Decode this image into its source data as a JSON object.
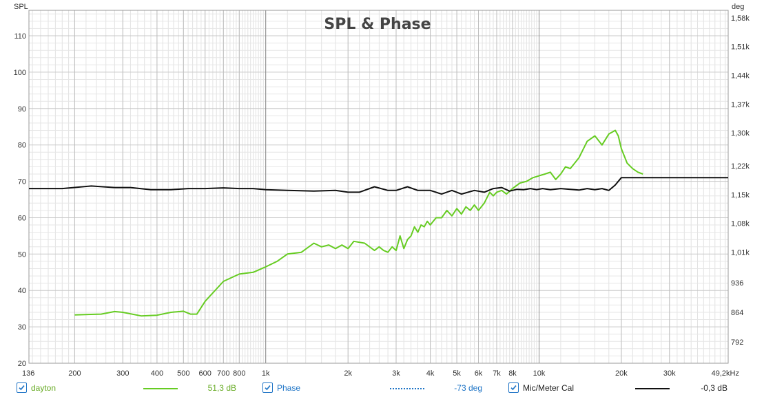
{
  "chart_data": {
    "type": "line",
    "title": "SPL & Phase",
    "ylabel": "SPL",
    "y2label": "deg",
    "x_unit_label": "49,2kHz",
    "xlim": [
      136,
      49200
    ],
    "x_scale": "log",
    "ylim": [
      20,
      117
    ],
    "y2lim": [
      740,
      1598
    ],
    "grid": true,
    "x_ticks": [
      {
        "v": 136,
        "label": "136"
      },
      {
        "v": 200,
        "label": "200"
      },
      {
        "v": 300,
        "label": "300"
      },
      {
        "v": 400,
        "label": "400"
      },
      {
        "v": 500,
        "label": "500"
      },
      {
        "v": 600,
        "label": "600"
      },
      {
        "v": 700,
        "label": "700"
      },
      {
        "v": 800,
        "label": "800"
      },
      {
        "v": 1000,
        "label": "1k"
      },
      {
        "v": 2000,
        "label": "2k"
      },
      {
        "v": 3000,
        "label": "3k"
      },
      {
        "v": 4000,
        "label": "4k"
      },
      {
        "v": 5000,
        "label": "5k"
      },
      {
        "v": 6000,
        "label": "6k"
      },
      {
        "v": 7000,
        "label": "7k"
      },
      {
        "v": 8000,
        "label": "8k"
      },
      {
        "v": 10000,
        "label": "10k"
      },
      {
        "v": 20000,
        "label": "20k"
      },
      {
        "v": 30000,
        "label": "30k"
      },
      {
        "v": 49200,
        "label": "49,2kHz"
      }
    ],
    "y_ticks": [
      20,
      30,
      40,
      50,
      60,
      70,
      80,
      90,
      100,
      110
    ],
    "y2_ticks": [
      {
        "v": 792,
        "label": "792"
      },
      {
        "v": 864,
        "label": "864"
      },
      {
        "v": 936,
        "label": "936"
      },
      {
        "v": 1010,
        "label": "1,01k"
      },
      {
        "v": 1080,
        "label": "1,08k"
      },
      {
        "v": 1150,
        "label": "1,15k"
      },
      {
        "v": 1220,
        "label": "1,22k"
      },
      {
        "v": 1300,
        "label": "1,30k"
      },
      {
        "v": 1370,
        "label": "1,37k"
      },
      {
        "v": 1440,
        "label": "1,44k"
      },
      {
        "v": 1510,
        "label": "1,51k"
      },
      {
        "v": 1580,
        "label": "1,58k"
      }
    ],
    "series": [
      {
        "name": "dayton",
        "color": "#66cc22",
        "axis": "left",
        "x": [
          200,
          250,
          280,
          300,
          350,
          400,
          450,
          500,
          530,
          560,
          600,
          700,
          800,
          900,
          1000,
          1100,
          1200,
          1350,
          1500,
          1600,
          1700,
          1800,
          1900,
          2000,
          2100,
          2300,
          2500,
          2600,
          2700,
          2800,
          2900,
          3000,
          3100,
          3200,
          3300,
          3400,
          3500,
          3600,
          3700,
          3800,
          3900,
          4000,
          4200,
          4400,
          4600,
          4800,
          5000,
          5200,
          5400,
          5600,
          5800,
          6000,
          6300,
          6600,
          6800,
          7000,
          7300,
          7600,
          8000,
          8500,
          9000,
          9500,
          10000,
          10500,
          11000,
          11500,
          12000,
          12500,
          13000,
          13500,
          14000,
          15000,
          16000,
          17000,
          18000,
          19000,
          19500,
          20000,
          21000,
          22000,
          23000,
          24000
        ],
        "y": [
          33.3,
          33.5,
          34.2,
          34,
          33,
          33.2,
          34,
          34.3,
          33.5,
          33.5,
          37,
          42.5,
          44.5,
          45,
          46.5,
          48,
          50,
          50.5,
          53,
          52,
          52.5,
          51.5,
          52.5,
          51.5,
          53.5,
          53,
          51,
          52,
          51,
          50.5,
          52,
          51,
          55,
          51.5,
          54,
          55,
          57.5,
          56,
          58,
          57.5,
          59,
          58,
          60,
          60,
          62,
          60.5,
          62.5,
          61,
          63,
          62,
          63.5,
          62,
          64,
          67,
          66,
          67,
          67.5,
          66.5,
          68,
          69.5,
          70,
          71,
          71.5,
          72,
          72.5,
          70.5,
          72,
          74,
          73.5,
          75,
          76.5,
          81,
          82.5,
          80,
          83,
          84,
          82.5,
          79,
          75,
          73.5,
          72.5,
          72
        ],
        "value_label": "51,3 dB"
      },
      {
        "name": "Mic/Meter Cal",
        "color": "#111111",
        "axis": "left",
        "x": [
          136,
          180,
          230,
          280,
          320,
          380,
          450,
          520,
          600,
          700,
          800,
          900,
          1000,
          1200,
          1500,
          1800,
          2000,
          2200,
          2500,
          2800,
          3000,
          3300,
          3600,
          4000,
          4400,
          4800,
          5200,
          5800,
          6300,
          6800,
          7300,
          7800,
          8300,
          8800,
          9300,
          9800,
          10300,
          11000,
          12000,
          13000,
          14000,
          15000,
          16000,
          17000,
          18000,
          19000,
          20000,
          21000,
          49200
        ],
        "y": [
          68,
          68,
          68.7,
          68.3,
          68.3,
          67.7,
          67.7,
          68,
          68,
          68.2,
          68,
          68,
          67.7,
          67.5,
          67.3,
          67.5,
          67,
          67,
          68.5,
          67.5,
          67.5,
          68.5,
          67.5,
          67.5,
          66.5,
          67.5,
          66.5,
          67.5,
          67,
          68,
          68.3,
          67.3,
          67.8,
          67.7,
          68,
          67.7,
          68,
          67.7,
          68,
          67.8,
          67.6,
          68,
          67.7,
          68,
          67.5,
          69,
          71,
          71,
          71
        ],
        "value_label": "-0,3 dB"
      }
    ],
    "phase_value_label": "-73 deg"
  },
  "legend": {
    "dayton": {
      "label": "dayton",
      "value": "51,3 dB"
    },
    "phase": {
      "label": "Phase",
      "value": "-73 deg"
    },
    "mic": {
      "label": "Mic/Meter Cal",
      "value": "-0,3 dB"
    }
  },
  "colors": {
    "check_border": "#1e74c6",
    "dayton": "#66cc22",
    "phase": "#1e74c6",
    "mic": "#111111"
  }
}
